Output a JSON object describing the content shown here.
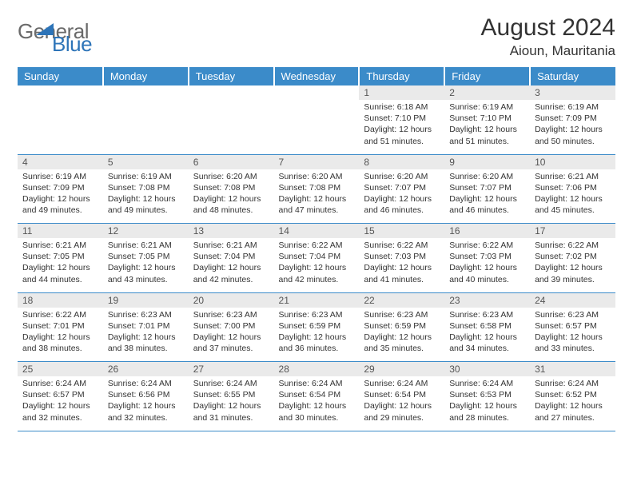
{
  "brand": {
    "part1": "General",
    "part2": "Blue",
    "triangle_color": "#2d74b8"
  },
  "title": "August 2024",
  "location": "Aioun, Mauritania",
  "colors": {
    "header_bg": "#3b8bc9",
    "header_text": "#ffffff",
    "daynum_bg": "#eaeaea",
    "border": "#3b8bc9"
  },
  "weekdays": [
    "Sunday",
    "Monday",
    "Tuesday",
    "Wednesday",
    "Thursday",
    "Friday",
    "Saturday"
  ],
  "weeks": [
    [
      null,
      null,
      null,
      null,
      {
        "d": "1",
        "sr": "6:18 AM",
        "ss": "7:10 PM",
        "dl": "12 hours and 51 minutes."
      },
      {
        "d": "2",
        "sr": "6:19 AM",
        "ss": "7:10 PM",
        "dl": "12 hours and 51 minutes."
      },
      {
        "d": "3",
        "sr": "6:19 AM",
        "ss": "7:09 PM",
        "dl": "12 hours and 50 minutes."
      }
    ],
    [
      {
        "d": "4",
        "sr": "6:19 AM",
        "ss": "7:09 PM",
        "dl": "12 hours and 49 minutes."
      },
      {
        "d": "5",
        "sr": "6:19 AM",
        "ss": "7:08 PM",
        "dl": "12 hours and 49 minutes."
      },
      {
        "d": "6",
        "sr": "6:20 AM",
        "ss": "7:08 PM",
        "dl": "12 hours and 48 minutes."
      },
      {
        "d": "7",
        "sr": "6:20 AM",
        "ss": "7:08 PM",
        "dl": "12 hours and 47 minutes."
      },
      {
        "d": "8",
        "sr": "6:20 AM",
        "ss": "7:07 PM",
        "dl": "12 hours and 46 minutes."
      },
      {
        "d": "9",
        "sr": "6:20 AM",
        "ss": "7:07 PM",
        "dl": "12 hours and 46 minutes."
      },
      {
        "d": "10",
        "sr": "6:21 AM",
        "ss": "7:06 PM",
        "dl": "12 hours and 45 minutes."
      }
    ],
    [
      {
        "d": "11",
        "sr": "6:21 AM",
        "ss": "7:05 PM",
        "dl": "12 hours and 44 minutes."
      },
      {
        "d": "12",
        "sr": "6:21 AM",
        "ss": "7:05 PM",
        "dl": "12 hours and 43 minutes."
      },
      {
        "d": "13",
        "sr": "6:21 AM",
        "ss": "7:04 PM",
        "dl": "12 hours and 42 minutes."
      },
      {
        "d": "14",
        "sr": "6:22 AM",
        "ss": "7:04 PM",
        "dl": "12 hours and 42 minutes."
      },
      {
        "d": "15",
        "sr": "6:22 AM",
        "ss": "7:03 PM",
        "dl": "12 hours and 41 minutes."
      },
      {
        "d": "16",
        "sr": "6:22 AM",
        "ss": "7:03 PM",
        "dl": "12 hours and 40 minutes."
      },
      {
        "d": "17",
        "sr": "6:22 AM",
        "ss": "7:02 PM",
        "dl": "12 hours and 39 minutes."
      }
    ],
    [
      {
        "d": "18",
        "sr": "6:22 AM",
        "ss": "7:01 PM",
        "dl": "12 hours and 38 minutes."
      },
      {
        "d": "19",
        "sr": "6:23 AM",
        "ss": "7:01 PM",
        "dl": "12 hours and 38 minutes."
      },
      {
        "d": "20",
        "sr": "6:23 AM",
        "ss": "7:00 PM",
        "dl": "12 hours and 37 minutes."
      },
      {
        "d": "21",
        "sr": "6:23 AM",
        "ss": "6:59 PM",
        "dl": "12 hours and 36 minutes."
      },
      {
        "d": "22",
        "sr": "6:23 AM",
        "ss": "6:59 PM",
        "dl": "12 hours and 35 minutes."
      },
      {
        "d": "23",
        "sr": "6:23 AM",
        "ss": "6:58 PM",
        "dl": "12 hours and 34 minutes."
      },
      {
        "d": "24",
        "sr": "6:23 AM",
        "ss": "6:57 PM",
        "dl": "12 hours and 33 minutes."
      }
    ],
    [
      {
        "d": "25",
        "sr": "6:24 AM",
        "ss": "6:57 PM",
        "dl": "12 hours and 32 minutes."
      },
      {
        "d": "26",
        "sr": "6:24 AM",
        "ss": "6:56 PM",
        "dl": "12 hours and 32 minutes."
      },
      {
        "d": "27",
        "sr": "6:24 AM",
        "ss": "6:55 PM",
        "dl": "12 hours and 31 minutes."
      },
      {
        "d": "28",
        "sr": "6:24 AM",
        "ss": "6:54 PM",
        "dl": "12 hours and 30 minutes."
      },
      {
        "d": "29",
        "sr": "6:24 AM",
        "ss": "6:54 PM",
        "dl": "12 hours and 29 minutes."
      },
      {
        "d": "30",
        "sr": "6:24 AM",
        "ss": "6:53 PM",
        "dl": "12 hours and 28 minutes."
      },
      {
        "d": "31",
        "sr": "6:24 AM",
        "ss": "6:52 PM",
        "dl": "12 hours and 27 minutes."
      }
    ]
  ],
  "labels": {
    "sunrise": "Sunrise:",
    "sunset": "Sunset:",
    "daylight": "Daylight:"
  }
}
